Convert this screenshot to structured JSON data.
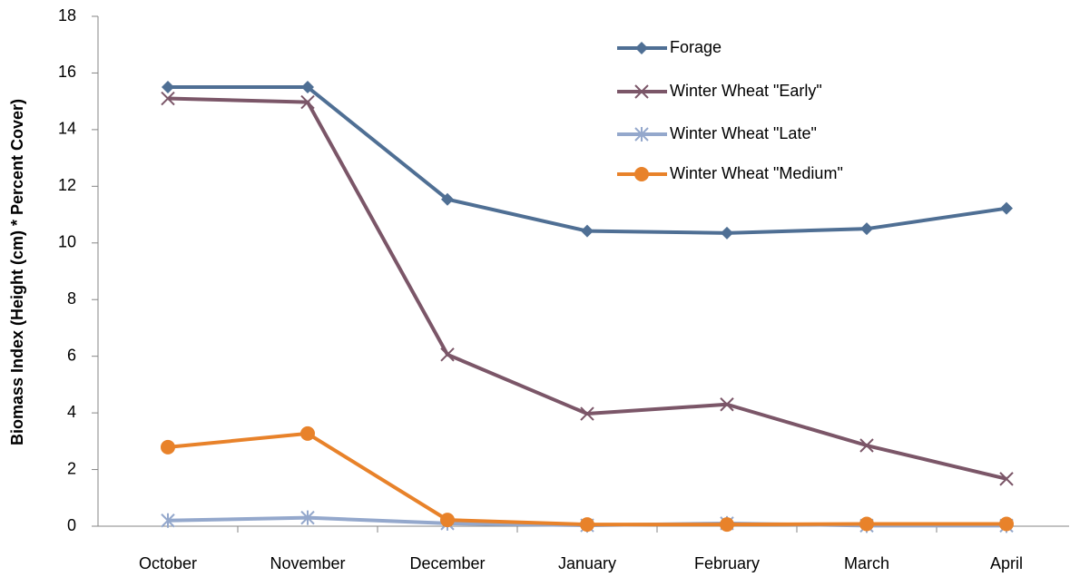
{
  "chart_data": {
    "type": "line",
    "y_label": "Biomass Index (Height (cm) *  Percent Cover)",
    "categories": [
      "October",
      "November",
      "December",
      "January",
      "February",
      "March",
      "April"
    ],
    "ylim": [
      0,
      18
    ],
    "yticks": [
      0,
      2,
      4,
      6,
      8,
      10,
      12,
      14,
      16,
      18
    ],
    "series": [
      {
        "name": "Forage",
        "color": "#4f6f94",
        "marker": "diamond",
        "values": [
          15.5,
          15.5,
          11.54,
          10.42,
          10.35,
          10.5,
          11.22
        ]
      },
      {
        "name": "Winter Wheat \"Early\"",
        "color": "#7b5668",
        "marker": "x",
        "values": [
          15.1,
          14.97,
          6.06,
          3.97,
          4.3,
          2.85,
          1.67
        ]
      },
      {
        "name": "Winter Wheat \"Late\"",
        "color": "#94a8cc",
        "marker": "star",
        "values": [
          0.2,
          0.3,
          0.1,
          0.03,
          0.1,
          0.02,
          0.02
        ]
      },
      {
        "name": "Winter Wheat \"Medium\"",
        "color": "#e8822a",
        "marker": "circle",
        "values": [
          2.79,
          3.27,
          0.22,
          0.06,
          0.06,
          0.08,
          0.08
        ]
      }
    ]
  }
}
